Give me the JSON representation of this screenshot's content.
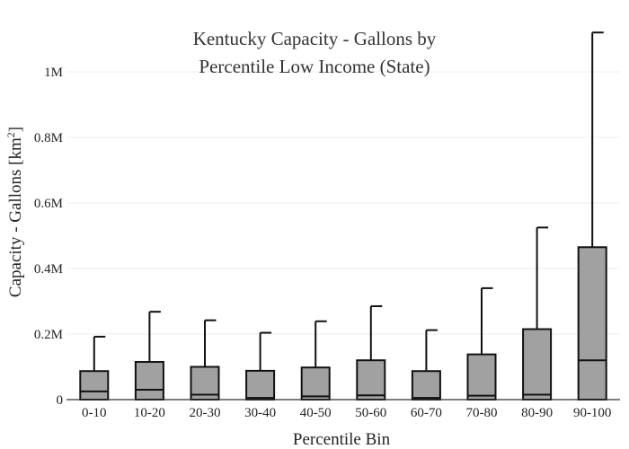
{
  "chart_data": {
    "type": "box",
    "title_lines": [
      "Kentucky Capacity - Gallons by",
      "Percentile Low Income (State)"
    ],
    "xlabel": "Percentile Bin",
    "ylabel_main": "Capacity - Gallons  [km",
    "ylabel_sup": "2",
    "ylabel_close": "]",
    "ylim": [
      0,
      1150000
    ],
    "yticks": [
      {
        "value": 0,
        "label": "0"
      },
      {
        "value": 200000,
        "label": "0.2M"
      },
      {
        "value": 400000,
        "label": "0.4M"
      },
      {
        "value": 600000,
        "label": "0.6M"
      },
      {
        "value": 800000,
        "label": "0.8M"
      },
      {
        "value": 1000000,
        "label": "1M"
      }
    ],
    "grid": true,
    "categories": [
      "0-10",
      "10-20",
      "20-30",
      "30-40",
      "40-50",
      "50-60",
      "60-70",
      "70-80",
      "80-90",
      "90-100"
    ],
    "boxes": [
      {
        "min": 0,
        "q1": 0,
        "median": 25000,
        "q3": 87000,
        "max": 192000
      },
      {
        "min": 0,
        "q1": 0,
        "median": 30000,
        "q3": 115000,
        "max": 268000
      },
      {
        "min": 0,
        "q1": 0,
        "median": 15000,
        "q3": 100000,
        "max": 242000
      },
      {
        "min": 0,
        "q1": 0,
        "median": 5000,
        "q3": 88000,
        "max": 204000
      },
      {
        "min": 0,
        "q1": 0,
        "median": 10000,
        "q3": 98000,
        "max": 239000
      },
      {
        "min": 0,
        "q1": 0,
        "median": 13000,
        "q3": 120000,
        "max": 285000
      },
      {
        "min": 0,
        "q1": 0,
        "median": 5000,
        "q3": 87000,
        "max": 212000
      },
      {
        "min": 0,
        "q1": 0,
        "median": 12000,
        "q3": 138000,
        "max": 340000
      },
      {
        "min": 0,
        "q1": 0,
        "median": 15000,
        "q3": 215000,
        "max": 525000
      },
      {
        "min": 0,
        "q1": 0,
        "median": 120000,
        "q3": 465000,
        "max": 1120000
      }
    ],
    "colors": {
      "box_fill": "#a1a1a1",
      "box_stroke": "#111111"
    }
  }
}
